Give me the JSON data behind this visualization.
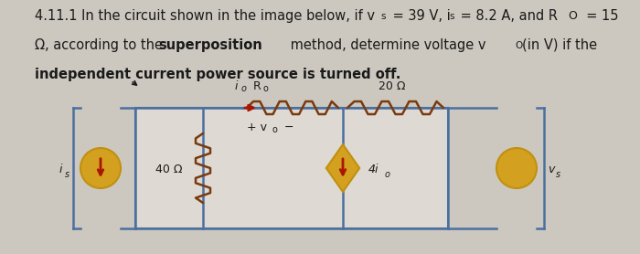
{
  "bg_color": "#ccc8bf",
  "circuit_bg": "#dedad3",
  "wire_color": "#4a6fa0",
  "resistor_color": "#7a3a10",
  "source_orange": "#d4a020",
  "source_orange_edge": "#c09010",
  "source_red": "#aa1500",
  "text_dark": "#1a1a1a",
  "text_black": "#000000",
  "line1_main": "4.11.1 In the circuit shown in the image below, if v",
  "line1_vs_sub": "s",
  "line1_mid": " = 39 V, i",
  "line1_is_sub": "s",
  "line1_mid2": " = 8.2 A, and R",
  "line1_ro_sub": "O",
  "line1_end": "  = 15",
  "line2_start": "Ω, according to the ",
  "line2_bold": "superposition",
  "line2_mid": " method, determine voltage v",
  "line2_vo_sub": "O",
  "line2_end": "(in V) if the",
  "line3": "independent current power source is turned off."
}
